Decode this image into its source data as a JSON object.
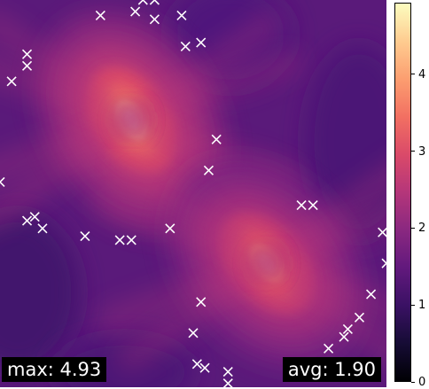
{
  "chart_data": {
    "type": "heatmap",
    "title": "",
    "xlabel": "",
    "ylabel": "",
    "colormap": "magma",
    "color_range": [
      0,
      4.93
    ],
    "colorbar_ticks": [
      0,
      1,
      2,
      3,
      4
    ],
    "colorbar_tick_labels": [
      "0",
      "1",
      "2",
      "3",
      "4"
    ],
    "stats": {
      "max_label": "max: 4.93",
      "avg_label": "avg: 1.90"
    },
    "sources": [
      {
        "x": 0.34,
        "y": 0.31,
        "value": 4.93
      },
      {
        "x": 0.69,
        "y": 0.68,
        "value": 4.5
      }
    ],
    "markers": [
      {
        "x": 0.26,
        "y": 0.04
      },
      {
        "x": 0.35,
        "y": 0.03
      },
      {
        "x": 0.37,
        "y": 0.0
      },
      {
        "x": 0.4,
        "y": 0.0
      },
      {
        "x": 0.4,
        "y": 0.05
      },
      {
        "x": 0.47,
        "y": 0.04
      },
      {
        "x": 0.48,
        "y": 0.12
      },
      {
        "x": 0.52,
        "y": 0.11
      },
      {
        "x": 0.07,
        "y": 0.14
      },
      {
        "x": 0.07,
        "y": 0.17
      },
      {
        "x": 0.03,
        "y": 0.21
      },
      {
        "x": 0.56,
        "y": 0.36
      },
      {
        "x": 0.54,
        "y": 0.44
      },
      {
        "x": 0.0,
        "y": 0.47
      },
      {
        "x": 0.07,
        "y": 0.57
      },
      {
        "x": 0.09,
        "y": 0.56
      },
      {
        "x": 0.11,
        "y": 0.59
      },
      {
        "x": 0.22,
        "y": 0.61
      },
      {
        "x": 0.31,
        "y": 0.62
      },
      {
        "x": 0.34,
        "y": 0.62
      },
      {
        "x": 0.44,
        "y": 0.59
      },
      {
        "x": 0.78,
        "y": 0.53
      },
      {
        "x": 0.81,
        "y": 0.53
      },
      {
        "x": 0.99,
        "y": 0.6
      },
      {
        "x": 1.0,
        "y": 0.68
      },
      {
        "x": 0.96,
        "y": 0.76
      },
      {
        "x": 0.93,
        "y": 0.82
      },
      {
        "x": 0.9,
        "y": 0.85
      },
      {
        "x": 0.89,
        "y": 0.87
      },
      {
        "x": 0.85,
        "y": 0.9
      },
      {
        "x": 0.52,
        "y": 0.78
      },
      {
        "x": 0.5,
        "y": 0.86
      },
      {
        "x": 0.51,
        "y": 0.94
      },
      {
        "x": 0.53,
        "y": 0.95
      },
      {
        "x": 0.59,
        "y": 0.96
      },
      {
        "x": 0.59,
        "y": 0.99
      }
    ]
  }
}
